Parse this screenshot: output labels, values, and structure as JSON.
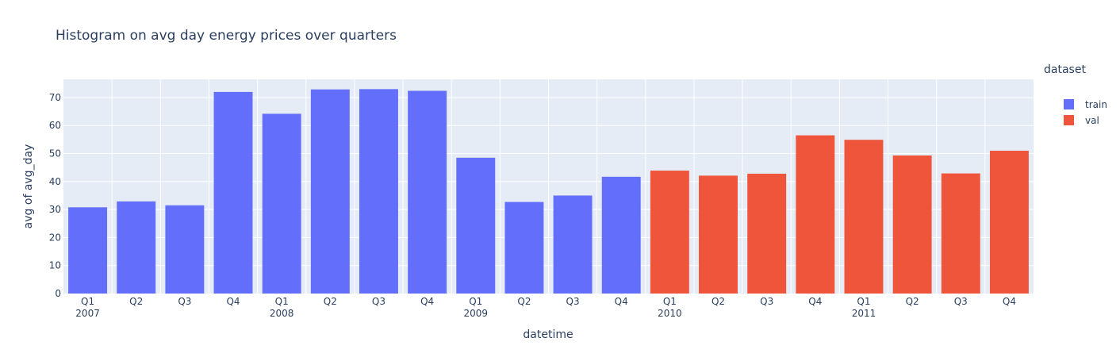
{
  "chart_data": {
    "type": "bar",
    "title": "Histogram on avg day energy prices over quarters",
    "xlabel": "datetime",
    "ylabel": "avg of avg_day",
    "ylim": [
      0,
      76.5
    ],
    "yticks": [
      0,
      10,
      20,
      30,
      40,
      50,
      60,
      70
    ],
    "grid": true,
    "legend": {
      "title": "dataset",
      "placement": "top-right"
    },
    "x": [
      "2007 Q1",
      "2007 Q2",
      "2007 Q3",
      "2007 Q4",
      "2008 Q1",
      "2008 Q2",
      "2008 Q3",
      "2008 Q4",
      "2009 Q1",
      "2009 Q2",
      "2009 Q3",
      "2009 Q4",
      "2010 Q1",
      "2010 Q2",
      "2010 Q3",
      "2010 Q4",
      "2011 Q1",
      "2011 Q2",
      "2011 Q3",
      "2011 Q4"
    ],
    "tick_labels": [
      {
        "quarter": "Q1",
        "year": "2007"
      },
      {
        "quarter": "Q2",
        "year": ""
      },
      {
        "quarter": "Q3",
        "year": ""
      },
      {
        "quarter": "Q4",
        "year": ""
      },
      {
        "quarter": "Q1",
        "year": "2008"
      },
      {
        "quarter": "Q2",
        "year": ""
      },
      {
        "quarter": "Q3",
        "year": ""
      },
      {
        "quarter": "Q4",
        "year": ""
      },
      {
        "quarter": "Q1",
        "year": "2009"
      },
      {
        "quarter": "Q2",
        "year": ""
      },
      {
        "quarter": "Q3",
        "year": ""
      },
      {
        "quarter": "Q4",
        "year": ""
      },
      {
        "quarter": "Q1",
        "year": "2010"
      },
      {
        "quarter": "Q2",
        "year": ""
      },
      {
        "quarter": "Q3",
        "year": ""
      },
      {
        "quarter": "Q4",
        "year": ""
      },
      {
        "quarter": "Q1",
        "year": "2011"
      },
      {
        "quarter": "Q2",
        "year": ""
      },
      {
        "quarter": "Q3",
        "year": ""
      },
      {
        "quarter": "Q4",
        "year": ""
      }
    ],
    "series": [
      {
        "name": "train",
        "color": "#636efa",
        "values": [
          30.8,
          32.9,
          31.5,
          72.0,
          64.2,
          72.9,
          73.0,
          72.4,
          48.5,
          32.7,
          35.0,
          41.7,
          null,
          null,
          null,
          null,
          null,
          null,
          null,
          null
        ]
      },
      {
        "name": "val",
        "color": "#ef553b",
        "values": [
          null,
          null,
          null,
          null,
          null,
          null,
          null,
          null,
          null,
          null,
          null,
          null,
          43.9,
          42.1,
          42.8,
          56.5,
          54.9,
          49.3,
          42.9,
          51.0
        ]
      }
    ]
  }
}
